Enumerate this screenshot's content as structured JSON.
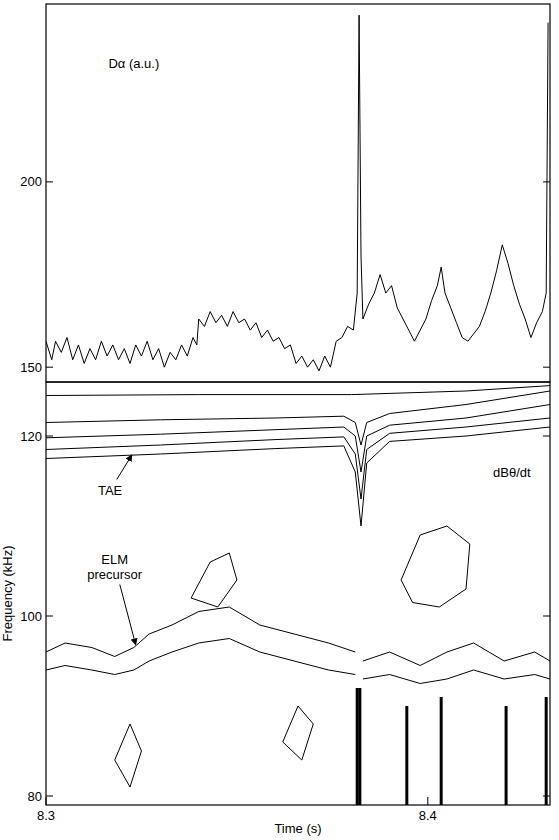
{
  "chart_data": [
    {
      "type": "line",
      "xlim": [
        8.3,
        8.432
      ],
      "ylim": [
        146,
        248
      ],
      "yticks": [
        150,
        200
      ],
      "tick_labels": "y",
      "color": "#000000",
      "annotations": [
        {
          "text": "Dα (a.u.)",
          "x": 8.323,
          "y": 232
        }
      ],
      "series": [
        {
          "color": "#000000",
          "x": [
            8.3,
            8.3015,
            8.3025,
            8.304,
            8.3055,
            8.307,
            8.3085,
            8.31,
            8.3115,
            8.313,
            8.3145,
            8.316,
            8.3175,
            8.319,
            8.3205,
            8.322,
            8.3235,
            8.325,
            8.3265,
            8.328,
            8.3295,
            8.331,
            8.3325,
            8.334,
            8.3355,
            8.337,
            8.3385,
            8.3395,
            8.34,
            8.3415,
            8.343,
            8.3445,
            8.346,
            8.3475,
            8.349,
            8.3505,
            8.352,
            8.3535,
            8.355,
            8.3565,
            8.358,
            8.3595,
            8.361,
            8.3625,
            8.364,
            8.3655,
            8.367,
            8.3685,
            8.37,
            8.3715,
            8.373,
            8.3745,
            8.376,
            8.3775,
            8.379,
            8.3805,
            8.3815,
            8.382,
            8.3825,
            8.383,
            8.3845,
            8.386,
            8.3875,
            8.389,
            8.3905,
            8.392,
            8.3935,
            8.395,
            8.3965,
            8.398,
            8.3995,
            8.401,
            8.4025,
            8.4035,
            8.4045,
            8.406,
            8.4075,
            8.409,
            8.4105,
            8.412,
            8.4135,
            8.415,
            8.4165,
            8.418,
            8.4195,
            8.421,
            8.4225,
            8.424,
            8.4255,
            8.427,
            8.4285,
            8.43,
            8.431,
            8.4315
          ],
          "values": [
            157,
            152,
            157,
            154,
            158,
            152,
            156,
            151,
            155,
            152,
            157,
            153,
            156,
            152,
            155,
            151,
            156,
            153,
            157,
            152,
            155,
            150,
            154,
            152,
            156,
            153,
            158,
            156,
            163,
            161,
            165,
            162,
            164,
            161,
            165,
            162,
            163,
            160,
            162,
            158,
            160,
            157,
            158,
            155,
            156,
            151,
            153,
            150,
            152,
            149,
            153,
            150,
            157,
            158,
            161,
            160,
            170,
            245,
            180,
            163,
            167,
            170,
            175,
            170,
            172,
            166,
            163,
            160,
            157,
            160,
            163,
            168,
            172,
            177,
            170,
            166,
            162,
            158,
            157,
            159,
            161,
            165,
            170,
            176,
            183,
            178,
            172,
            167,
            163,
            158,
            162,
            165,
            170,
            243
          ]
        }
      ]
    },
    {
      "type": "line",
      "x_label": "Time (s)",
      "y_label": "Frequency (kHz)",
      "xlim": [
        8.3,
        8.432
      ],
      "xticks": [
        8.3,
        8.4
      ],
      "ylim": [
        79,
        126
      ],
      "yticks": [
        80,
        100,
        120
      ],
      "color": "#000000",
      "annotations": [
        {
          "text": "TAE",
          "x": 8.3168,
          "y": 114,
          "arrow_to": [
            8.3225,
            117.9
          ]
        },
        {
          "text": "ELM precursor",
          "x": 8.318,
          "y": 105,
          "arrow_to": [
            8.3235,
            96.8
          ]
        },
        {
          "text": "dBθ/dt",
          "x": 8.422,
          "y": 116
        }
      ],
      "series": [
        {
          "x": [
            8.3,
            8.33,
            8.36,
            8.378,
            8.381,
            8.3825,
            8.384,
            8.39,
            8.41,
            8.432
          ],
          "values": [
            117.5,
            118,
            118.6,
            118.9,
            116,
            110,
            117,
            119.4,
            120,
            121
          ]
        },
        {
          "x": [
            8.3,
            8.33,
            8.36,
            8.378,
            8.381,
            8.3825,
            8.384,
            8.39,
            8.41,
            8.432
          ],
          "values": [
            118.5,
            119,
            119.6,
            119.9,
            118,
            113,
            118.5,
            120.3,
            121,
            122
          ]
        },
        {
          "x": [
            8.3,
            8.33,
            8.36,
            8.378,
            8.381,
            8.3825,
            8.384,
            8.39,
            8.41,
            8.432
          ],
          "values": [
            119.8,
            120.2,
            120.7,
            121,
            120,
            116,
            120,
            121.2,
            122,
            123.5
          ]
        },
        {
          "x": [
            8.3,
            8.33,
            8.36,
            8.378,
            8.381,
            8.3825,
            8.384,
            8.39,
            8.41,
            8.432
          ],
          "values": [
            121.5,
            121.8,
            122,
            122.2,
            121.5,
            119,
            121.5,
            122.5,
            123.5,
            125
          ]
        },
        {
          "x": [
            8.3,
            8.34,
            8.38,
            8.41,
            8.432
          ],
          "values": [
            124.5,
            124.6,
            124.6,
            125,
            125.6
          ]
        },
        {
          "x": [
            8.3,
            8.305,
            8.312,
            8.318,
            8.323,
            8.327,
            8.333,
            8.34,
            8.348,
            8.356,
            8.365,
            8.374,
            8.381
          ],
          "values": [
            96,
            97,
            96.5,
            95.5,
            96.5,
            98,
            99,
            100.5,
            101,
            99,
            98,
            97,
            96
          ]
        },
        {
          "x": [
            8.3,
            8.305,
            8.312,
            8.318,
            8.323,
            8.327,
            8.333,
            8.34,
            8.348,
            8.356,
            8.365,
            8.374,
            8.381
          ],
          "values": [
            94,
            94.5,
            94,
            93.5,
            94,
            95,
            96,
            97,
            97.5,
            96,
            95,
            94,
            93.5
          ]
        },
        {
          "x": [
            8.383,
            8.39,
            8.398,
            8.405,
            8.412,
            8.42,
            8.428,
            8.432
          ],
          "values": [
            95,
            96,
            94.5,
            96,
            97,
            95,
            96,
            95
          ]
        },
        {
          "x": [
            8.383,
            8.39,
            8.398,
            8.405,
            8.412,
            8.42,
            8.428,
            8.432
          ],
          "values": [
            93,
            93.5,
            92.5,
            93,
            94,
            93,
            93.5,
            93
          ]
        },
        {
          "x": [
            8.338,
            8.343,
            8.348,
            8.35,
            8.345,
            8.338
          ],
          "values": [
            102,
            106,
            107,
            104,
            101,
            102
          ]
        },
        {
          "x": [
            8.393,
            8.398,
            8.405,
            8.411,
            8.41,
            8.403,
            8.396,
            8.393
          ],
          "values": [
            104,
            109,
            110,
            108,
            103,
            101,
            101.5,
            104
          ]
        },
        {
          "x": [
            8.318,
            8.322,
            8.325,
            8.322,
            8.318
          ],
          "values": [
            84,
            88,
            85,
            81,
            84
          ]
        },
        {
          "x": [
            8.362,
            8.366,
            8.37,
            8.367,
            8.362
          ],
          "values": [
            86,
            90,
            88,
            84,
            86
          ]
        },
        {
          "x": [
            8.3815,
            8.3815
          ],
          "values": [
            79,
            92
          ],
          "line_style": "heavy"
        },
        {
          "x": [
            8.3822,
            8.3822
          ],
          "values": [
            79,
            92
          ],
          "line_style": "heavy"
        },
        {
          "x": [
            8.3945,
            8.3945
          ],
          "values": [
            79,
            90
          ],
          "line_style": "heavy"
        },
        {
          "x": [
            8.4035,
            8.4035
          ],
          "values": [
            79,
            91
          ],
          "line_style": "heavy"
        },
        {
          "x": [
            8.4205,
            8.4205
          ],
          "values": [
            79,
            90
          ],
          "line_style": "heavy"
        },
        {
          "x": [
            8.431,
            8.431
          ],
          "values": [
            79,
            91
          ],
          "line_style": "heavy"
        }
      ]
    }
  ]
}
